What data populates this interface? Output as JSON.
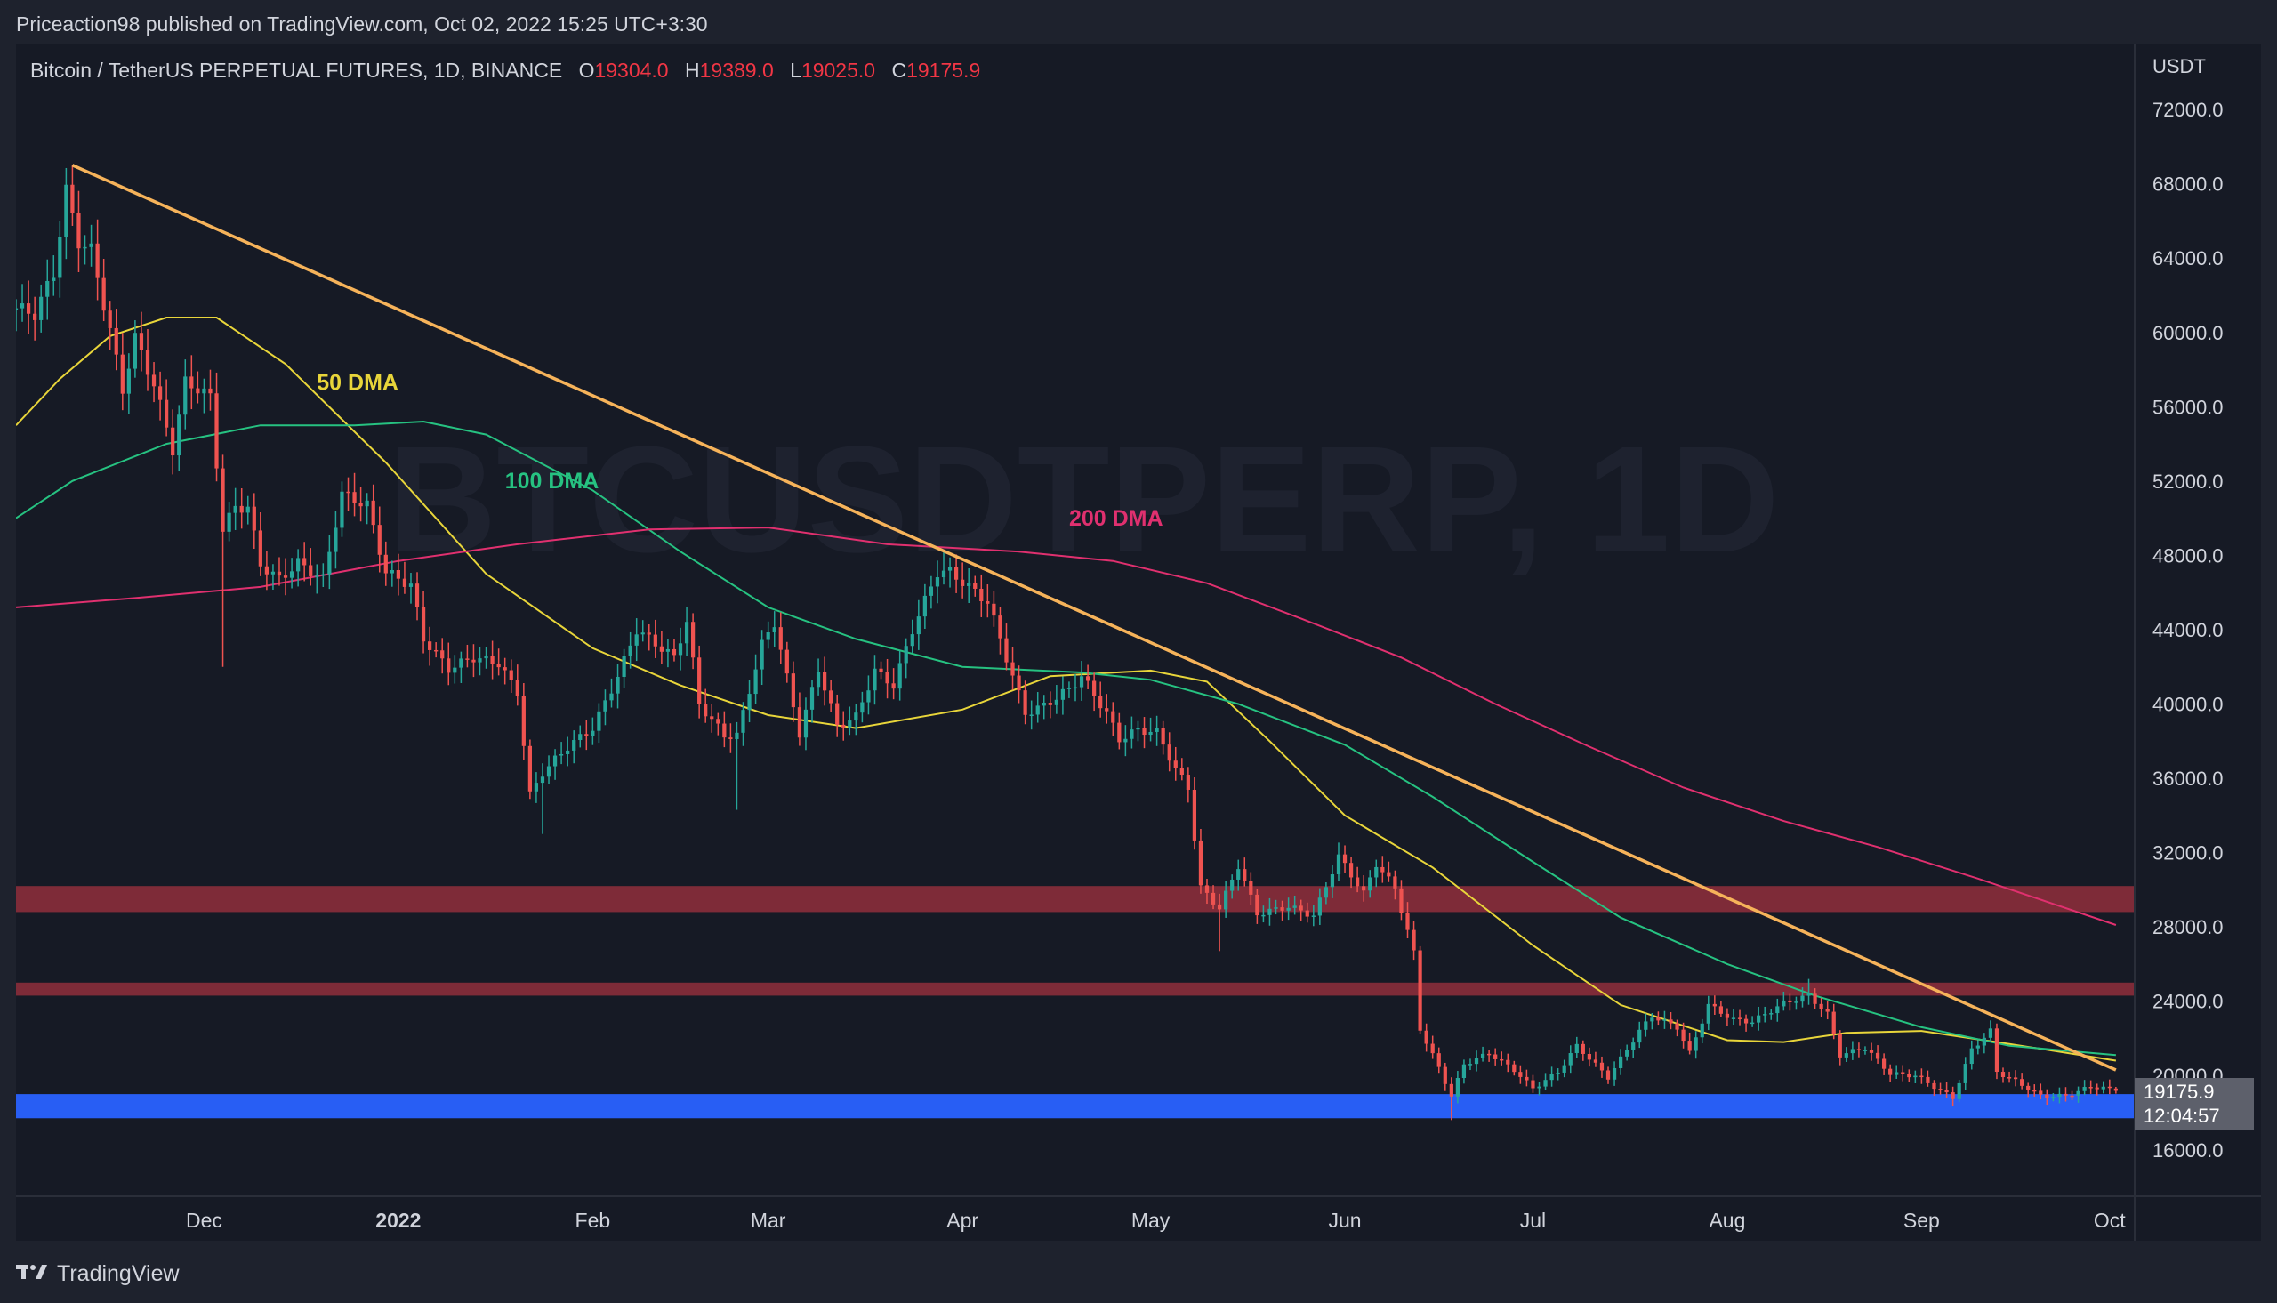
{
  "header": {
    "publisher": "Priceaction98 published on TradingView.com, Oct 02, 2022 15:25 UTC+3:30"
  },
  "legend": {
    "symbol": "Bitcoin / TetherUS PERPETUAL FUTURES, 1D, BINANCE",
    "open_label": "O",
    "open": "19304.0",
    "high_label": "H",
    "high": "19389.0",
    "low_label": "L",
    "low": "19025.0",
    "close_label": "C",
    "close": "19175.9"
  },
  "price_tag": {
    "price": "19175.9",
    "countdown": "12:04:57"
  },
  "footer": {
    "brand": "TradingView"
  },
  "colors": {
    "background": "#161a25",
    "up": "#26a69a",
    "down": "#ef5350",
    "trendline": "#f6b35a",
    "ma50": "#e8d53a",
    "ma100": "#26c281",
    "ma200": "#e0306f",
    "resistance_zone": "#8a2e3b",
    "support_zone": "#2962ff"
  },
  "chart_data": {
    "type": "candlestick",
    "title": "",
    "xlabel": "",
    "ylabel": "USDT",
    "y_unit": "USDT",
    "ylim": [
      13500,
      75500
    ],
    "y_ticks": [
      "72000.0",
      "68000.0",
      "64000.0",
      "60000.0",
      "56000.0",
      "52000.0",
      "48000.0",
      "44000.0",
      "40000.0",
      "36000.0",
      "32000.0",
      "28000.0",
      "24000.0",
      "20000.0",
      "16000.0"
    ],
    "x_range": [
      "2021-11-01",
      "2022-10-05"
    ],
    "x_ticks": [
      {
        "label": "Dec",
        "date": "2021-12-01",
        "bold": false
      },
      {
        "label": "2022",
        "date": "2022-01-01",
        "bold": true
      },
      {
        "label": "Feb",
        "date": "2022-02-01",
        "bold": false
      },
      {
        "label": "Mar",
        "date": "2022-03-01",
        "bold": false
      },
      {
        "label": "Apr",
        "date": "2022-04-01",
        "bold": false
      },
      {
        "label": "May",
        "date": "2022-05-01",
        "bold": false
      },
      {
        "label": "Jun",
        "date": "2022-06-01",
        "bold": false
      },
      {
        "label": "Jul",
        "date": "2022-07-01",
        "bold": false
      },
      {
        "label": "Aug",
        "date": "2022-08-01",
        "bold": false
      },
      {
        "label": "Sep",
        "date": "2022-09-01",
        "bold": false
      },
      {
        "label": "Oct",
        "date": "2022-10-01",
        "bold": false
      }
    ],
    "grid": false,
    "close_anchors": [
      [
        "2021-11-01",
        61300
      ],
      [
        "2021-11-04",
        61000
      ],
      [
        "2021-11-07",
        63200
      ],
      [
        "2021-11-09",
        67600
      ],
      [
        "2021-11-11",
        64900
      ],
      [
        "2021-11-13",
        64400
      ],
      [
        "2021-11-16",
        60100
      ],
      [
        "2021-11-18",
        56900
      ],
      [
        "2021-11-20",
        59700
      ],
      [
        "2021-11-23",
        57200
      ],
      [
        "2021-11-26",
        53700
      ],
      [
        "2021-11-28",
        57300
      ],
      [
        "2021-11-30",
        57000
      ],
      [
        "2021-12-02",
        56500
      ],
      [
        "2021-12-04",
        49400
      ],
      [
        "2021-12-06",
        50600
      ],
      [
        "2021-12-08",
        50600
      ],
      [
        "2021-12-10",
        47500
      ],
      [
        "2021-12-13",
        46700
      ],
      [
        "2021-12-16",
        47600
      ],
      [
        "2021-12-20",
        46700
      ],
      [
        "2021-12-23",
        51300
      ],
      [
        "2021-12-27",
        50700
      ],
      [
        "2021-12-30",
        47100
      ],
      [
        "2022-01-03",
        46400
      ],
      [
        "2022-01-05",
        43500
      ],
      [
        "2022-01-09",
        41900
      ],
      [
        "2022-01-13",
        42500
      ],
      [
        "2022-01-17",
        42200
      ],
      [
        "2022-01-20",
        40600
      ],
      [
        "2022-01-22",
        35100
      ],
      [
        "2022-01-24",
        36300
      ],
      [
        "2022-01-28",
        37700
      ],
      [
        "2022-02-01",
        38700
      ],
      [
        "2022-02-05",
        41500
      ],
      [
        "2022-02-08",
        44000
      ],
      [
        "2022-02-10",
        43500
      ],
      [
        "2022-02-14",
        42500
      ],
      [
        "2022-02-16",
        44500
      ],
      [
        "2022-02-18",
        40000
      ],
      [
        "2022-02-22",
        38300
      ],
      [
        "2022-02-24",
        38300
      ],
      [
        "2022-02-28",
        43200
      ],
      [
        "2022-03-02",
        44400
      ],
      [
        "2022-03-06",
        38400
      ],
      [
        "2022-03-09",
        41900
      ],
      [
        "2022-03-12",
        38800
      ],
      [
        "2022-03-15",
        39300
      ],
      [
        "2022-03-18",
        41800
      ],
      [
        "2022-03-21",
        41000
      ],
      [
        "2022-03-24",
        44000
      ],
      [
        "2022-03-28",
        47100
      ],
      [
        "2022-03-30",
        47100
      ],
      [
        "2022-04-02",
        46300
      ],
      [
        "2022-04-05",
        45500
      ],
      [
        "2022-04-07",
        43500
      ],
      [
        "2022-04-11",
        39500
      ],
      [
        "2022-04-14",
        39900
      ],
      [
        "2022-04-18",
        40800
      ],
      [
        "2022-04-20",
        41500
      ],
      [
        "2022-04-24",
        39500
      ],
      [
        "2022-04-26",
        38100
      ],
      [
        "2022-04-29",
        38600
      ],
      [
        "2022-05-02",
        38500
      ],
      [
        "2022-05-05",
        36500
      ],
      [
        "2022-05-07",
        35500
      ],
      [
        "2022-05-09",
        30100
      ],
      [
        "2022-05-12",
        29000
      ],
      [
        "2022-05-15",
        31300
      ],
      [
        "2022-05-18",
        28700
      ],
      [
        "2022-05-23",
        29100
      ],
      [
        "2022-05-27",
        28600
      ],
      [
        "2022-05-31",
        31800
      ],
      [
        "2022-06-04",
        29800
      ],
      [
        "2022-06-06",
        31400
      ],
      [
        "2022-06-09",
        30100
      ],
      [
        "2022-06-12",
        26600
      ],
      [
        "2022-06-13",
        22500
      ],
      [
        "2022-06-16",
        20400
      ],
      [
        "2022-06-18",
        18900
      ],
      [
        "2022-06-20",
        20600
      ],
      [
        "2022-06-24",
        21200
      ],
      [
        "2022-06-28",
        20300
      ],
      [
        "2022-07-01",
        19300
      ],
      [
        "2022-07-05",
        20200
      ],
      [
        "2022-07-08",
        21600
      ],
      [
        "2022-07-13",
        19900
      ],
      [
        "2022-07-18",
        22400
      ],
      [
        "2022-07-20",
        23200
      ],
      [
        "2022-07-24",
        22600
      ],
      [
        "2022-07-26",
        21200
      ],
      [
        "2022-07-29",
        23800
      ],
      [
        "2022-08-02",
        23000
      ],
      [
        "2022-08-05",
        22900
      ],
      [
        "2022-08-10",
        23900
      ],
      [
        "2022-08-14",
        24300
      ],
      [
        "2022-08-17",
        23300
      ],
      [
        "2022-08-19",
        21100
      ],
      [
        "2022-08-23",
        21500
      ],
      [
        "2022-08-27",
        20100
      ],
      [
        "2022-08-31",
        20000
      ],
      [
        "2022-09-06",
        18800
      ],
      [
        "2022-09-09",
        21400
      ],
      [
        "2022-09-12",
        22400
      ],
      [
        "2022-09-13",
        20200
      ],
      [
        "2022-09-16",
        19700
      ],
      [
        "2022-09-20",
        18900
      ],
      [
        "2022-09-24",
        18900
      ],
      [
        "2022-09-28",
        19400
      ],
      [
        "2022-10-01",
        19300
      ],
      [
        "2022-10-02",
        19176
      ]
    ],
    "wick_extremes": [
      {
        "date": "2021-11-10",
        "high": 69000
      },
      {
        "date": "2021-12-04",
        "low": 42000
      },
      {
        "date": "2022-01-24",
        "low": 33000
      },
      {
        "date": "2022-02-24",
        "low": 34300
      },
      {
        "date": "2022-03-29",
        "high": 48200
      },
      {
        "date": "2022-05-12",
        "low": 26700
      },
      {
        "date": "2022-06-18",
        "low": 17600
      },
      {
        "date": "2022-08-14",
        "high": 25200
      },
      {
        "date": "2022-09-13",
        "high": 22800
      }
    ],
    "last_ohlc": {
      "open": 19304.0,
      "high": 19389.0,
      "low": 19025.0,
      "close": 19175.9
    },
    "moving_averages": [
      {
        "name": "50 DMA",
        "color_key": "ma50",
        "label_date": "2021-12-19",
        "label_price": 56900,
        "points": [
          [
            "2021-11-01",
            55000
          ],
          [
            "2021-11-08",
            57500
          ],
          [
            "2021-11-16",
            59800
          ],
          [
            "2021-11-25",
            60800
          ],
          [
            "2021-12-03",
            60800
          ],
          [
            "2021-12-14",
            58300
          ],
          [
            "2021-12-30",
            53000
          ],
          [
            "2022-01-15",
            47000
          ],
          [
            "2022-02-01",
            43000
          ],
          [
            "2022-02-15",
            41000
          ],
          [
            "2022-03-01",
            39400
          ],
          [
            "2022-03-15",
            38700
          ],
          [
            "2022-04-01",
            39700
          ],
          [
            "2022-04-15",
            41500
          ],
          [
            "2022-05-01",
            41800
          ],
          [
            "2022-05-10",
            41200
          ],
          [
            "2022-05-20",
            38000
          ],
          [
            "2022-06-01",
            34000
          ],
          [
            "2022-06-15",
            31200
          ],
          [
            "2022-07-01",
            27000
          ],
          [
            "2022-07-15",
            23800
          ],
          [
            "2022-08-01",
            21900
          ],
          [
            "2022-08-10",
            21800
          ],
          [
            "2022-08-20",
            22300
          ],
          [
            "2022-09-01",
            22400
          ],
          [
            "2022-09-15",
            21700
          ],
          [
            "2022-10-02",
            20800
          ]
        ]
      },
      {
        "name": "100 DMA",
        "color_key": "ma100",
        "label_date": "2022-01-18",
        "label_price": 51600,
        "points": [
          [
            "2021-11-01",
            50000
          ],
          [
            "2021-11-10",
            52000
          ],
          [
            "2021-11-25",
            54000
          ],
          [
            "2021-12-10",
            55000
          ],
          [
            "2021-12-25",
            55000
          ],
          [
            "2022-01-05",
            55200
          ],
          [
            "2022-01-15",
            54500
          ],
          [
            "2022-02-01",
            51500
          ],
          [
            "2022-02-15",
            48200
          ],
          [
            "2022-03-01",
            45200
          ],
          [
            "2022-03-15",
            43500
          ],
          [
            "2022-04-01",
            42000
          ],
          [
            "2022-04-20",
            41700
          ],
          [
            "2022-05-01",
            41300
          ],
          [
            "2022-05-15",
            40000
          ],
          [
            "2022-06-01",
            37800
          ],
          [
            "2022-06-15",
            35000
          ],
          [
            "2022-07-01",
            31500
          ],
          [
            "2022-07-15",
            28500
          ],
          [
            "2022-08-01",
            26000
          ],
          [
            "2022-08-15",
            24300
          ],
          [
            "2022-09-01",
            22600
          ],
          [
            "2022-09-15",
            21600
          ],
          [
            "2022-10-02",
            21100
          ]
        ]
      },
      {
        "name": "200 DMA",
        "color_key": "ma200",
        "label_date": "2022-04-18",
        "label_price": 49600,
        "points": [
          [
            "2021-11-01",
            45200
          ],
          [
            "2021-11-20",
            45700
          ],
          [
            "2021-12-10",
            46300
          ],
          [
            "2022-01-01",
            47700
          ],
          [
            "2022-01-20",
            48600
          ],
          [
            "2022-02-10",
            49400
          ],
          [
            "2022-03-01",
            49500
          ],
          [
            "2022-03-20",
            48600
          ],
          [
            "2022-04-10",
            48200
          ],
          [
            "2022-04-25",
            47700
          ],
          [
            "2022-05-10",
            46500
          ],
          [
            "2022-05-25",
            44600
          ],
          [
            "2022-06-10",
            42500
          ],
          [
            "2022-06-25",
            40000
          ],
          [
            "2022-07-10",
            37700
          ],
          [
            "2022-07-25",
            35500
          ],
          [
            "2022-08-10",
            33700
          ],
          [
            "2022-08-25",
            32300
          ],
          [
            "2022-09-10",
            30600
          ],
          [
            "2022-10-02",
            28100
          ]
        ]
      }
    ],
    "trendline": {
      "start": [
        "2021-11-10",
        69000
      ],
      "end": [
        "2022-10-02",
        20300
      ]
    },
    "zones": [
      {
        "kind": "resistance",
        "color_key": "resistance_zone",
        "from": 28800,
        "to": 30200
      },
      {
        "kind": "resistance",
        "color_key": "resistance_zone",
        "from": 24300,
        "to": 25000
      },
      {
        "kind": "support",
        "color_key": "support_zone",
        "from": 17700,
        "to": 19000
      }
    ],
    "watermark": "BTCUSDTPERP, 1D"
  }
}
